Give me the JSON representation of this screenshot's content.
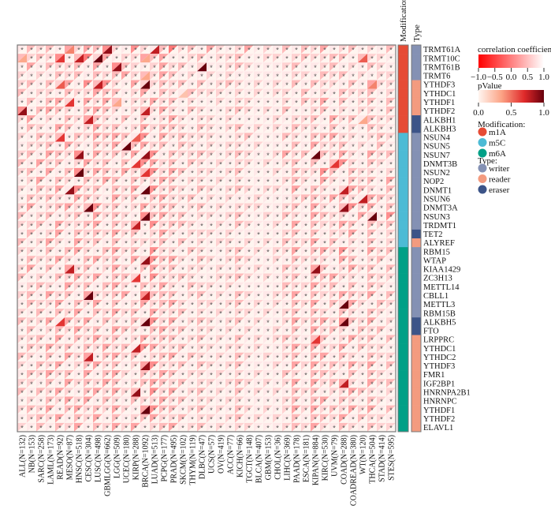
{
  "chart_data": {
    "type": "heatmap",
    "title": "",
    "columns": [
      "ALL(N=132)",
      "NB(N=153)",
      "SARC(N=258)",
      "LAML(N=173)",
      "READ(N=92)",
      "MESO(N=87)",
      "HNSC(N=518)",
      "CESC(N=304)",
      "LUSC(N=498)",
      "GBMLGG(N=662)",
      "LGG(N=509)",
      "UCEC(N=180)",
      "KIRP(N=288)",
      "BRCA(N=1092)",
      "LUAD(N=513)",
      "PCPG(N=177)",
      "PRAD(N=495)",
      "SKCM(N=102)",
      "THYM(N=119)",
      "DLBC(N=47)",
      "UCS(N=57)",
      "OV(N=419)",
      "ACC(N=77)",
      "KICH(N=66)",
      "TGCT(N=148)",
      "BLCA(N=407)",
      "GBM(N=153)",
      "CHOL(N=36)",
      "LIHC(N=369)",
      "PAAD(N=178)",
      "ESCA(N=181)",
      "KIPAN(N=884)",
      "KIRC(N=530)",
      "UVM(N=79)",
      "COAD(N=288)",
      "COADREAD(N=380)",
      "WT(N=120)",
      "THCA(N=504)",
      "STAD(N=414)",
      "STES(N=595)"
    ],
    "rows": [
      "TRMT61A",
      "TRMT10C",
      "TRMT61B",
      "TRMT6",
      "YTHDF3",
      "YTHDC1",
      "YTHDF1",
      "YTHDF2",
      "ALKBH1",
      "ALKBH3",
      "NSUN4",
      "NSUN5",
      "NSUN7",
      "DNMT3B",
      "NSUN2",
      "NOP2",
      "DNMT1",
      "NSUN6",
      "DNMT3A",
      "NSUN3",
      "TRDMT1",
      "TET2",
      "ALYREF",
      "RBM15",
      "WTAP",
      "KIAA1429",
      "ZC3H13",
      "METTL14",
      "CBLL1",
      "METTL3",
      "RBM15B",
      "ALKBH5",
      "FTO",
      "LRPPRC",
      "YTHDC1",
      "YTHDC2",
      "YTHDF3",
      "FMR1",
      "IGF2BP1",
      "HNRNPA2B1",
      "HNRNPC",
      "YTHDF1",
      "YTHDF2",
      "ELAVL1"
    ],
    "modification": [
      "m1A",
      "m1A",
      "m1A",
      "m1A",
      "m1A",
      "m1A",
      "m1A",
      "m1A",
      "m1A",
      "m1A",
      "m5C",
      "m5C",
      "m5C",
      "m5C",
      "m5C",
      "m5C",
      "m5C",
      "m5C",
      "m5C",
      "m5C",
      "m5C",
      "m5C",
      "m5C",
      "m6A",
      "m6A",
      "m6A",
      "m6A",
      "m6A",
      "m6A",
      "m6A",
      "m6A",
      "m6A",
      "m6A",
      "m6A",
      "m6A",
      "m6A",
      "m6A",
      "m6A",
      "m6A",
      "m6A",
      "m6A",
      "m6A",
      "m6A",
      "m6A"
    ],
    "type_annot": [
      "writer",
      "writer",
      "writer",
      "writer",
      "reader",
      "reader",
      "reader",
      "reader",
      "eraser",
      "eraser",
      "writer",
      "writer",
      "writer",
      "writer",
      "writer",
      "writer",
      "writer",
      "writer",
      "writer",
      "writer",
      "writer",
      "eraser",
      "reader",
      "writer",
      "writer",
      "writer",
      "writer",
      "writer",
      "writer",
      "writer",
      "writer",
      "eraser",
      "eraser",
      "reader",
      "reader",
      "reader",
      "reader",
      "reader",
      "reader",
      "reader",
      "reader",
      "reader",
      "reader",
      "reader"
    ],
    "value_encoding": "correlation digit d -> correlation = 1 - 2*d/9*0.8 ; pvalue digit d -> pValue = d/9 ; star marks pValue < 0.05",
    "correlation_digits": [
      "1323142435215213623142124121313241231213",
      "3232513624122434112312231122123223313221",
      "1413223141532124231211232111231123121321",
      "2121323132342324312121211111122132312122",
      "2313241535214223231312321212131322131422",
      "3122132243312413213222121212213121322312",
      "1313421424312242312112122111213241312313",
      "5134321343212324213211232121311231212213",
      "2412132432131312421221211112122314231322",
      "1321431242312423321321231212132213121321",
      "2132313243431514232221123111321334221232",
      "1223142132413423132121221211131422312131",
      "2314325142324151322321232112423132421423",
      "3142312423131542313212122121231313521321",
      "2314135243242352431221231112132253132212",
      "1241321324313224312212121111232142132314",
      "2132415231324152321321232122141321243213",
      "1323214321423134223121211211123324321432",
      "2412342352312423312312122211231421352413",
      "3123123142321534231221231121321432214215",
      "2231422341324152332112132112141322431323",
      "1312413232423124212221211111231312241312",
      "3124214231312223131212212121322413121312",
      "2213134213423152213211231212241342521423",
      "1322421342314253421321232112132221431231",
      "2413142312421342312212121211321431242313",
      "3121324241332152232112232121231334221322",
      "1232142313421324213221211111322423131321",
      "2314231422341533312312132112241322432413",
      "1322413241312423421221231212132413242132",
      "2131324132423142231212122121231321321321",
      "3224142413213252412321231211242342532412",
      "1312324231432134231221212112131423213231",
      "2231413242312423312312131212321331242313",
      "1324231324231542231221221211242422413221",
      "3213142413423123413212132121231341321322",
      "2132412342312452231321231112142423242413",
      "1324231413421324312212121211321332131321",
      "2213142324312343231221232121241423421423",
      "3132421342423152412312131212132312243212",
      "1213242413213224231221221111231341321321",
      "2324134232421453312312132121242423242413",
      "1232413241312342231221231212131332413221",
      "2131324132424123412312122111232421321322"
    ],
    "pvalue_digits": [
      "0000040008000070000000000000000000000000",
      "3000607090000300000000000000000000005000",
      "0000000000800000000900000000000000000000",
      "0000000000000300000000000000000000000000",
      "0000500070000900000000000000000000000400",
      "0000000000000000020000000000000000000000",
      "0000060000300000000000000000000000000000",
      "8000000000000700000000000000000000000000",
      "0000000700000000000000000000000000003000",
      "0000000000000000000000000000000000000000",
      "0000600000005000000000000000000000000000",
      "0000000000090000000000000000000000000000",
      "0000008000000800000000000000000900000000",
      "0000000000006000000000000000000006000000",
      "0000009000000600000000000000000000000000",
      "0000000000000000000000000000000000000000",
      "0000080000000900000000000000000000700000",
      "0000000000000000000000000000000000007000",
      "0000000900000000000000000000000000800000",
      "0000000000000900000000000000000000000900",
      "0000000000007000000000000000000000000000",
      "0000000000000000000000000000000000000000",
      "0000000000000000000000000000000000000000",
      "0000000000000000000000000000000000000000",
      "0000000000000800000000000000000000000000",
      "0000070000000000000000000000000800000000",
      "0000000000006000000000000000000000000000",
      "0000000000000000000000000000000000000000",
      "0000000900000700000000000000000000000000",
      "0000000000000000000000000000000000900000",
      "0000000000000000000000000000000000000000",
      "0000600000000900000000000000000000900000",
      "0000000000000000000000000000000000000000",
      "0000000000000000000000000000000600000000",
      "0000000000007000000000000000000000000000",
      "0000000700000000000000000000000000000000",
      "0000000000000800000000000000000000000000",
      "0000000000000000000000000000000000000000",
      "0000000000000000000000000000000000700000",
      "0000000000008000000000000000000000000000",
      "0000000000000000000000000000000000000000",
      "0000000000000900000000000000000000000000",
      "0000000000000000000000000000000000000000",
      "0000000000000000000000000000000000000000"
    ],
    "star_symbol": "*",
    "annotation_headers": {
      "modification": "Modification",
      "type": "Type"
    },
    "legend": {
      "correlation_title": "correlation coefficient",
      "correlation_ticks": [
        "−1.0",
        "−0.5",
        "0.0",
        "0.5",
        "1.0"
      ],
      "pvalue_title": "pValue",
      "pvalue_ticks": [
        "0.0",
        "0.5",
        "1.0"
      ],
      "modification_title": "Modification:",
      "modification_items": [
        {
          "label": "m1A",
          "color": "#E64B35"
        },
        {
          "label": "m5C",
          "color": "#4DBBD5"
        },
        {
          "label": "m6A",
          "color": "#00A087"
        }
      ],
      "type_title": "Type:",
      "type_items": [
        {
          "label": "writer",
          "color": "#8491B4"
        },
        {
          "label": "reader",
          "color": "#F39B7F"
        },
        {
          "label": "eraser",
          "color": "#3C5488"
        }
      ]
    }
  }
}
